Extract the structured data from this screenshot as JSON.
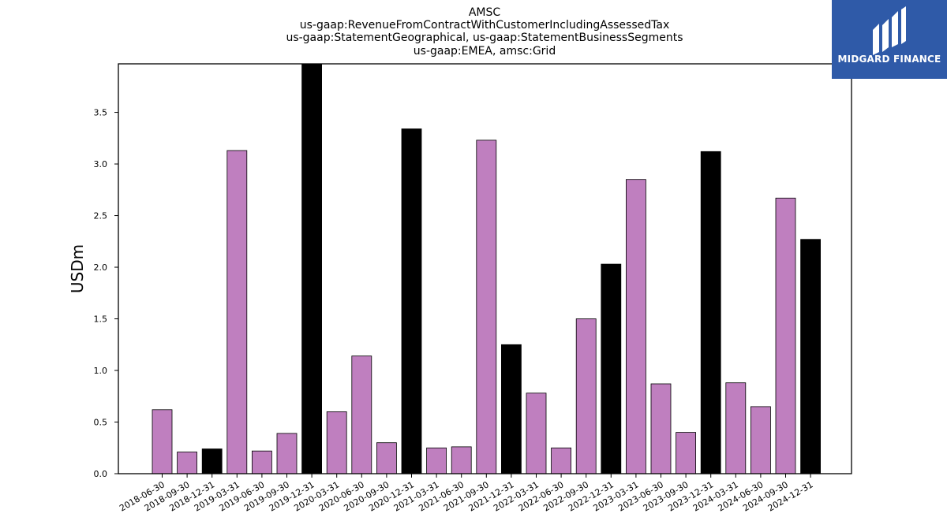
{
  "chart_data": {
    "type": "bar",
    "title_lines": [
      "AMSC",
      "us-gaap:RevenueFromContractWithCustomerIncludingAssessedTax",
      "us-gaap:StatementGeographical, us-gaap:StatementBusinessSegments",
      "us-gaap:EMEA, amsc:Grid"
    ],
    "xlabel": "",
    "ylabel": "USDm",
    "ylim": [
      0,
      3.97
    ],
    "yticks": [
      0.0,
      0.5,
      1.0,
      1.5,
      2.0,
      2.5,
      3.0,
      3.5
    ],
    "ytick_labels": [
      "0.0",
      "0.5",
      "1.0",
      "1.5",
      "2.0",
      "2.5",
      "3.0",
      "3.5"
    ],
    "grid": false,
    "categories": [
      "2018-06-30",
      "2018-09-30",
      "2018-12-31",
      "2019-03-31",
      "2019-06-30",
      "2019-09-30",
      "2019-12-31",
      "2020-03-31",
      "2020-06-30",
      "2020-09-30",
      "2020-12-31",
      "2021-03-31",
      "2021-06-30",
      "2021-09-30",
      "2021-12-31",
      "2022-03-31",
      "2022-06-30",
      "2022-09-30",
      "2022-12-31",
      "2023-03-31",
      "2023-06-30",
      "2023-09-30",
      "2023-12-31",
      "2024-03-31",
      "2024-06-30",
      "2024-09-30",
      "2024-12-31"
    ],
    "values": [
      0.62,
      0.21,
      0.24,
      3.13,
      0.22,
      0.39,
      3.97,
      0.6,
      1.14,
      0.3,
      3.34,
      0.25,
      0.26,
      3.23,
      1.25,
      0.78,
      0.25,
      1.5,
      2.03,
      2.85,
      0.87,
      0.4,
      3.12,
      0.88,
      0.65,
      2.67,
      2.27
    ],
    "colors": {
      "quarter": "#bf7fbf",
      "year_end": "#000000",
      "edge": "#000000"
    }
  },
  "logo": {
    "text": "MIDGARD FINANCE",
    "background": "#2f5aa8"
  }
}
